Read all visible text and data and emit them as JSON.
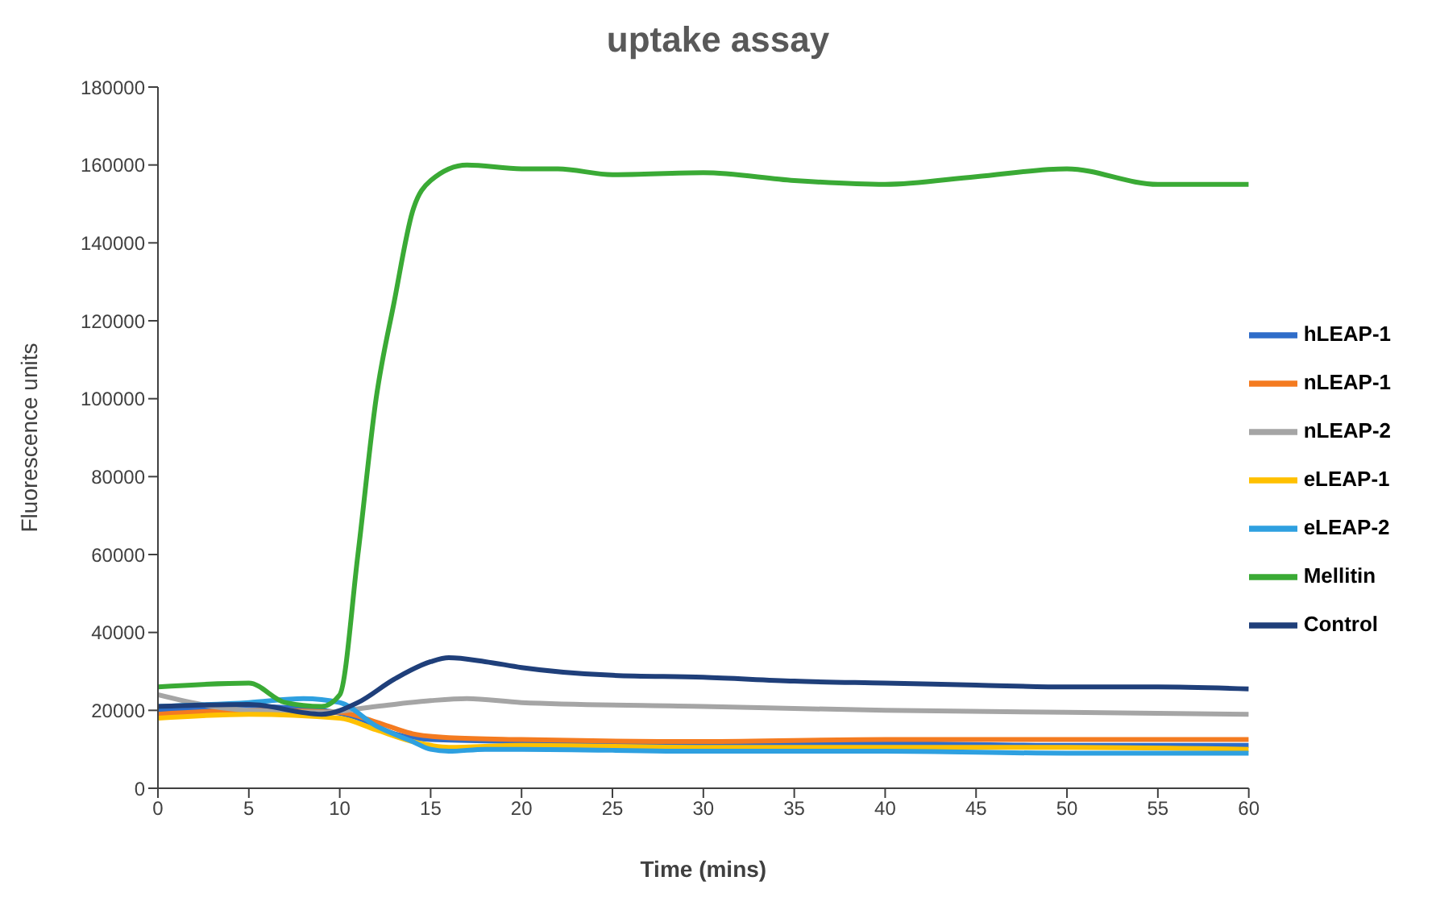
{
  "chart_data": {
    "type": "line",
    "title": "uptake assay",
    "xlabel": "Time (mins)",
    "ylabel": "Fluorescence units",
    "xlim": [
      0,
      60
    ],
    "xticks": [
      0,
      5,
      10,
      15,
      20,
      25,
      30,
      35,
      40,
      45,
      50,
      55,
      60
    ],
    "ylim": [
      0,
      180000
    ],
    "yticks": [
      0,
      20000,
      40000,
      60000,
      80000,
      100000,
      120000,
      140000,
      160000,
      180000
    ],
    "grid": false,
    "legend": "right",
    "marker": "none",
    "line_style": "solid",
    "series": [
      {
        "name": "hLEAP-1",
        "color": "#2f6dc9",
        "x": [
          0,
          5,
          9,
          11,
          13,
          15,
          20,
          30,
          40,
          50,
          60
        ],
        "values": [
          20000,
          21000,
          20000,
          18000,
          14000,
          12500,
          12000,
          11500,
          11500,
          11000,
          11000
        ]
      },
      {
        "name": "nLEAP-1",
        "color": "#f47b20",
        "x": [
          0,
          5,
          10,
          12,
          14,
          16,
          20,
          30,
          40,
          50,
          60
        ],
        "values": [
          19000,
          20000,
          19500,
          17000,
          14000,
          13000,
          12500,
          12000,
          12500,
          12500,
          12500
        ]
      },
      {
        "name": "nLEAP-2",
        "color": "#a5a5a5",
        "x": [
          0,
          3,
          5,
          9,
          12,
          15,
          17,
          20,
          30,
          40,
          50,
          60
        ],
        "values": [
          24000,
          21000,
          20000,
          19500,
          21000,
          22500,
          23000,
          22000,
          21000,
          20000,
          19500,
          19000
        ]
      },
      {
        "name": "eLEAP-1",
        "color": "#ffc000",
        "x": [
          0,
          5,
          10,
          12,
          14,
          16,
          20,
          30,
          40,
          50,
          60
        ],
        "values": [
          18000,
          19000,
          18000,
          15000,
          12000,
          10500,
          11000,
          10500,
          10500,
          10500,
          10000
        ]
      },
      {
        "name": "eLEAP-2",
        "color": "#2ea0e0",
        "x": [
          0,
          5,
          8,
          10,
          12,
          14,
          15,
          16,
          18,
          20,
          30,
          40,
          50,
          60
        ],
        "values": [
          21000,
          22000,
          23000,
          22000,
          16000,
          12000,
          10000,
          9500,
          10000,
          10000,
          9500,
          9500,
          9000,
          9000
        ]
      },
      {
        "name": "Mellitin",
        "color": "#3aaa35",
        "x": [
          0,
          5,
          7,
          9,
          10,
          11,
          12,
          13,
          14,
          15,
          17,
          20,
          22,
          25,
          30,
          35,
          40,
          45,
          50,
          55,
          60
        ],
        "values": [
          26000,
          27000,
          22000,
          21000,
          24000,
          60000,
          100000,
          125000,
          148000,
          156000,
          160000,
          159000,
          159000,
          157500,
          158000,
          156000,
          155000,
          157000,
          159000,
          155000,
          155000
        ]
      },
      {
        "name": "Control",
        "color": "#1f3f7a",
        "x": [
          0,
          5,
          9,
          11,
          13,
          15,
          16,
          18,
          20,
          25,
          30,
          35,
          40,
          45,
          50,
          55,
          60
        ],
        "values": [
          21000,
          21500,
          19000,
          22000,
          28000,
          32500,
          33500,
          32500,
          31000,
          29000,
          28500,
          27500,
          27000,
          26500,
          26000,
          26000,
          25500
        ]
      }
    ]
  }
}
